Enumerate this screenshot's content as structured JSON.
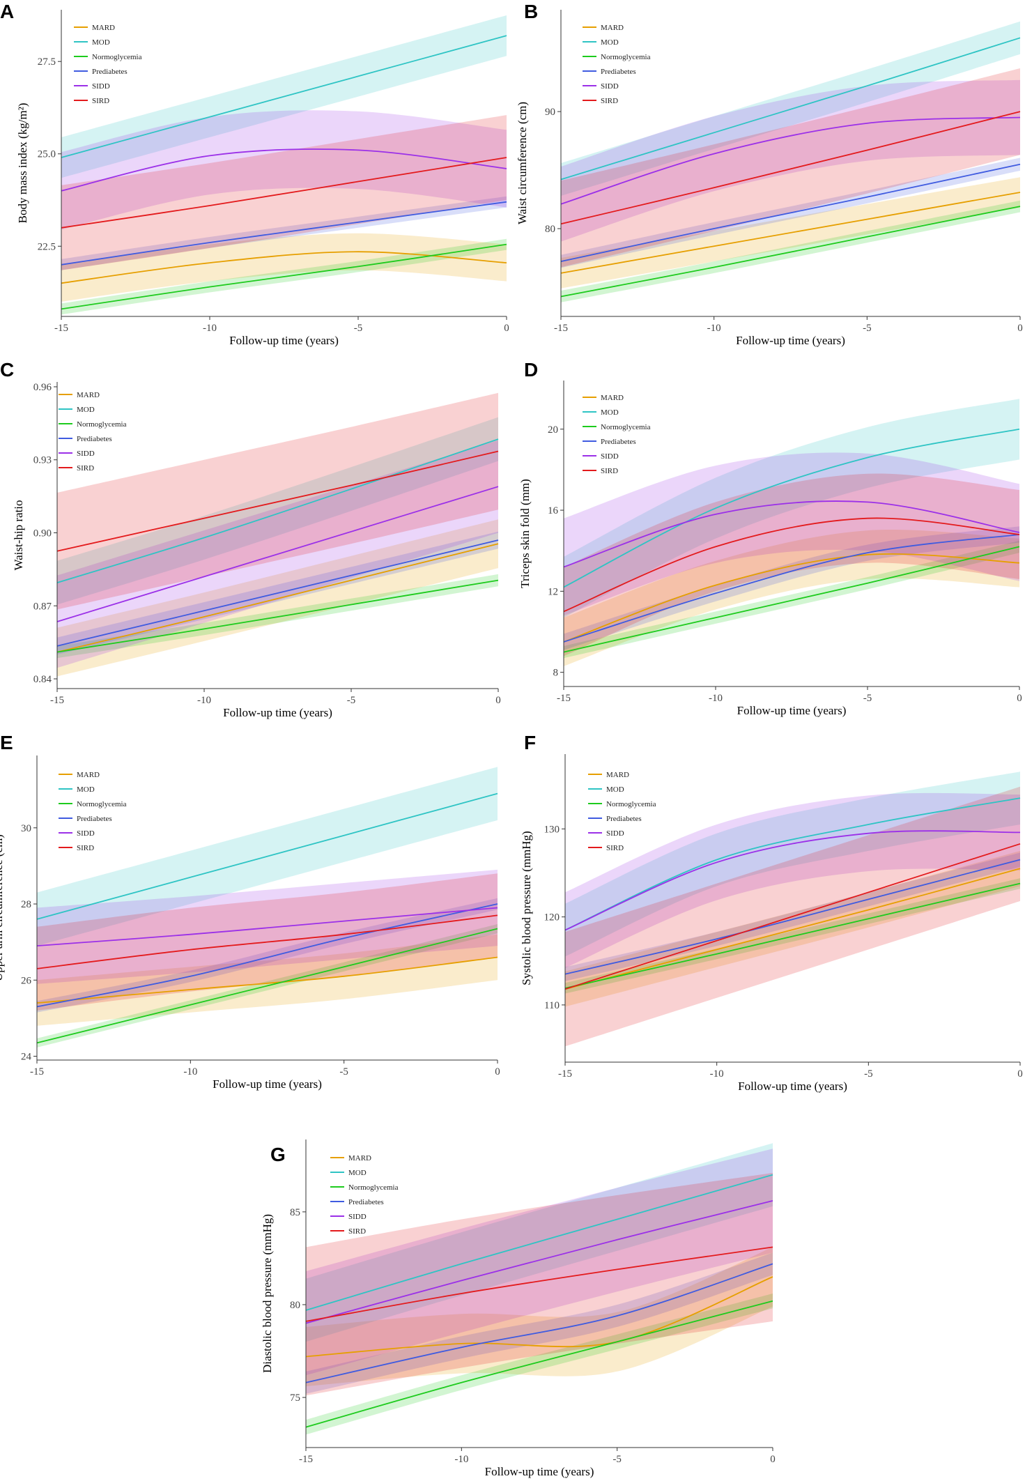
{
  "figure": {
    "series_names": [
      "MARD",
      "MOD",
      "Normoglycemia",
      "Prediabetes",
      "SIDD",
      "SIRD"
    ]
  },
  "colors": {
    "MARD": "#E69F00",
    "MOD": "#2EC4C4",
    "Normoglycemia": "#1DCB1D",
    "Prediabetes": "#3F5BE0",
    "SIDD": "#9B30E8",
    "SIRD": "#E31A1C"
  },
  "chart_data": [
    {
      "type": "line",
      "panel": "A",
      "title": "",
      "xlabel": "Follow-up time (years)",
      "ylabel": "Body mass index (kg/m²)",
      "xlim": [
        -15,
        0
      ],
      "ylim": [
        20.6,
        28.9
      ],
      "x_ticks": [
        -15,
        -10,
        -5,
        0
      ],
      "x_tick_labels": [
        "-15",
        "-10",
        "-5",
        "0"
      ],
      "y_ticks": [
        22.5,
        25.0,
        27.5
      ],
      "y_tick_labels": [
        "22.5",
        "25.0",
        "27.5"
      ],
      "x": [
        -15,
        -10,
        -5,
        0
      ],
      "series": [
        {
          "name": "MARD",
          "values": [
            21.5,
            22.05,
            22.35,
            22.05
          ],
          "band": 0.5
        },
        {
          "name": "MOD",
          "values": [
            24.9,
            26.0,
            27.1,
            28.2
          ],
          "band": 0.55
        },
        {
          "name": "Normoglycemia",
          "values": [
            20.8,
            21.4,
            21.95,
            22.55
          ],
          "band": 0.15
        },
        {
          "name": "Prediabetes",
          "values": [
            22.0,
            22.6,
            23.15,
            23.7
          ],
          "band": 0.15
        },
        {
          "name": "SIDD",
          "values": [
            24.0,
            24.95,
            25.1,
            24.6
          ],
          "band": 1.05
        },
        {
          "name": "SIRD",
          "values": [
            23.0,
            23.6,
            24.25,
            24.9
          ],
          "band": 1.15
        }
      ]
    },
    {
      "type": "line",
      "panel": "B",
      "title": "",
      "xlabel": "Follow-up time (years)",
      "ylabel": "Waist circumference (cm)",
      "xlim": [
        -15,
        0
      ],
      "ylim": [
        72.5,
        98.7
      ],
      "x_ticks": [
        -15,
        -10,
        -5,
        0
      ],
      "x_tick_labels": [
        "-15",
        "-10",
        "-5",
        "0"
      ],
      "y_ticks": [
        80,
        90
      ],
      "y_tick_labels": [
        "80",
        "90"
      ],
      "x": [
        -15,
        -10,
        -5,
        0
      ],
      "series": [
        {
          "name": "MARD",
          "values": [
            76.2,
            78.5,
            80.8,
            83.1
          ],
          "band": 1.3
        },
        {
          "name": "MOD",
          "values": [
            84.2,
            88.2,
            92.2,
            96.3
          ],
          "band": 1.4
        },
        {
          "name": "Normoglycemia",
          "values": [
            74.2,
            76.7,
            79.3,
            81.9
          ],
          "band": 0.5
        },
        {
          "name": "Prediabetes",
          "values": [
            77.2,
            80.0,
            82.7,
            85.5
          ],
          "band": 0.55
        },
        {
          "name": "SIDD",
          "values": [
            82.1,
            86.4,
            89.0,
            89.5
          ],
          "band": 3.2
        },
        {
          "name": "SIRD",
          "values": [
            80.4,
            83.5,
            86.7,
            90.0
          ],
          "band": 3.7
        }
      ]
    },
    {
      "type": "line",
      "panel": "C",
      "title": "",
      "xlabel": "Follow-up time (years)",
      "ylabel": "Waist-hip ratio",
      "xlim": [
        -15,
        0
      ],
      "ylim": [
        0.836,
        0.962
      ],
      "x_ticks": [
        -15,
        -10,
        -5,
        0
      ],
      "x_tick_labels": [
        "-15",
        "-10",
        "-5",
        "0"
      ],
      "y_ticks": [
        0.84,
        0.87,
        0.9,
        0.93,
        0.96
      ],
      "y_tick_labels": [
        "0.84",
        "0.87",
        "0.90",
        "0.93",
        "0.96"
      ],
      "x": [
        -15,
        -10,
        -5,
        0
      ],
      "series": [
        {
          "name": "MARD",
          "values": [
            0.851,
            0.8655,
            0.8805,
            0.8955
          ],
          "band": 0.01
        },
        {
          "name": "MOD",
          "values": [
            0.8795,
            0.898,
            0.918,
            0.9385
          ],
          "band": 0.009
        },
        {
          "name": "Normoglycemia",
          "values": [
            0.851,
            0.8605,
            0.8705,
            0.8805
          ],
          "band": 0.0025
        },
        {
          "name": "Prediabetes",
          "values": [
            0.8535,
            0.868,
            0.8825,
            0.897
          ],
          "band": 0.0035
        },
        {
          "name": "SIDD",
          "values": [
            0.8635,
            0.882,
            0.9005,
            0.919
          ],
          "band": 0.019
        },
        {
          "name": "SIRD",
          "values": [
            0.8925,
            0.906,
            0.9195,
            0.9335
          ],
          "band": 0.024
        }
      ]
    },
    {
      "type": "line",
      "panel": "D",
      "title": "",
      "xlabel": "Follow-up time (years)",
      "ylabel": "Triceps skin fold (mm)",
      "xlim": [
        -15,
        0
      ],
      "ylim": [
        7.3,
        22.4
      ],
      "x_ticks": [
        -15,
        -10,
        -5,
        0
      ],
      "x_tick_labels": [
        "-15",
        "-10",
        "-5",
        "0"
      ],
      "y_ticks": [
        8,
        12,
        16,
        20
      ],
      "y_tick_labels": [
        "8",
        "12",
        "16",
        "20"
      ],
      "x": [
        -15,
        -10,
        -5,
        0
      ],
      "series": [
        {
          "name": "MARD",
          "values": [
            9.5,
            12.3,
            13.8,
            13.4
          ],
          "band": 1.2
        },
        {
          "name": "MOD",
          "values": [
            12.2,
            16.1,
            18.6,
            20.0
          ],
          "band": 1.5
        },
        {
          "name": "Normoglycemia",
          "values": [
            9.0,
            10.7,
            12.4,
            14.2
          ],
          "band": 0.3
        },
        {
          "name": "Prediabetes",
          "values": [
            9.5,
            11.9,
            13.9,
            14.8
          ],
          "band": 0.4
        },
        {
          "name": "SIDD",
          "values": [
            13.2,
            15.8,
            16.4,
            14.9
          ],
          "band": 2.4
        },
        {
          "name": "SIRD",
          "values": [
            11.0,
            14.2,
            15.6,
            14.8
          ],
          "band": 2.2
        }
      ]
    },
    {
      "type": "line",
      "panel": "E",
      "title": "",
      "xlabel": "Follow-up time (years)",
      "ylabel": "Upper arm circumference (cm)",
      "xlim": [
        -15,
        0
      ],
      "ylim": [
        23.9,
        31.9
      ],
      "x_ticks": [
        -15,
        -10,
        -5,
        0
      ],
      "x_tick_labels": [
        "-15",
        "-10",
        "-5",
        "0"
      ],
      "y_ticks": [
        24,
        26,
        28,
        30
      ],
      "y_tick_labels": [
        "24",
        "26",
        "28",
        "30"
      ],
      "x": [
        -15,
        -10,
        -5,
        0
      ],
      "series": [
        {
          "name": "MARD",
          "values": [
            25.4,
            25.75,
            26.1,
            26.6
          ],
          "band": 0.6
        },
        {
          "name": "MOD",
          "values": [
            27.6,
            28.7,
            29.8,
            30.9
          ],
          "band": 0.7
        },
        {
          "name": "Normoglycemia",
          "values": [
            24.35,
            25.35,
            26.35,
            27.35
          ],
          "band": 0.12
        },
        {
          "name": "Prediabetes",
          "values": [
            25.3,
            26.1,
            27.1,
            28.0
          ],
          "band": 0.15
        },
        {
          "name": "SIDD",
          "values": [
            26.9,
            27.2,
            27.55,
            27.9
          ],
          "band": 1.0
        },
        {
          "name": "SIRD",
          "values": [
            26.3,
            26.8,
            27.2,
            27.7
          ],
          "band": 1.1
        }
      ]
    },
    {
      "type": "line",
      "panel": "F",
      "title": "",
      "xlabel": "Follow-up time (years)",
      "ylabel": "Systolic blood pressure (mmHg)",
      "xlim": [
        -15,
        0
      ],
      "ylim": [
        103.5,
        138.5
      ],
      "x_ticks": [
        -15,
        -10,
        -5,
        0
      ],
      "x_tick_labels": [
        "-15",
        "-10",
        "-5",
        "0"
      ],
      "y_ticks": [
        110,
        120,
        130
      ],
      "y_tick_labels": [
        "110",
        "120",
        "130"
      ],
      "x": [
        -15,
        -10,
        -5,
        0
      ],
      "series": [
        {
          "name": "MARD",
          "values": [
            111.8,
            116.3,
            120.8,
            125.5
          ],
          "band": 2.0
        },
        {
          "name": "MOD",
          "values": [
            118.5,
            126.5,
            130.5,
            133.5
          ],
          "band": 3.0
        },
        {
          "name": "Normoglycemia",
          "values": [
            111.9,
            115.8,
            119.8,
            123.8
          ],
          "band": 0.6
        },
        {
          "name": "Prediabetes",
          "values": [
            113.5,
            117.5,
            122.0,
            126.5
          ],
          "band": 0.8
        },
        {
          "name": "SIDD",
          "values": [
            118.5,
            126.2,
            129.5,
            129.6
          ],
          "band": 4.3
        },
        {
          "name": "SIRD",
          "values": [
            111.8,
            117.3,
            122.8,
            128.3
          ],
          "band": 6.5
        }
      ]
    },
    {
      "type": "line",
      "panel": "G",
      "title": "",
      "xlabel": "Follow-up time (years)",
      "ylabel": "Diastolic blood pressure (mmHg)",
      "xlim": [
        -15,
        0
      ],
      "ylim": [
        72.3,
        88.9
      ],
      "x_ticks": [
        -15,
        -10,
        -5,
        0
      ],
      "x_tick_labels": [
        "-15",
        "-10",
        "-5",
        "0"
      ],
      "y_ticks": [
        75,
        80,
        85
      ],
      "y_tick_labels": [
        "75",
        "80",
        "85"
      ],
      "x": [
        -15,
        -10,
        -5,
        0
      ],
      "series": [
        {
          "name": "MARD",
          "values": [
            77.2,
            77.9,
            78.0,
            81.5
          ],
          "band": 1.6
        },
        {
          "name": "MOD",
          "values": [
            79.7,
            82.2,
            84.6,
            87.0
          ],
          "band": 1.7
        },
        {
          "name": "Normoglycemia",
          "values": [
            73.4,
            75.8,
            78.0,
            80.2
          ],
          "band": 0.4
        },
        {
          "name": "Prediabetes",
          "values": [
            75.8,
            77.7,
            79.4,
            82.2
          ],
          "band": 0.6
        },
        {
          "name": "SIDD",
          "values": [
            79.0,
            81.3,
            83.5,
            85.6
          ],
          "band": 2.8
        },
        {
          "name": "SIRD",
          "values": [
            79.1,
            80.6,
            81.9,
            83.1
          ],
          "band": 4.0
        }
      ]
    }
  ]
}
